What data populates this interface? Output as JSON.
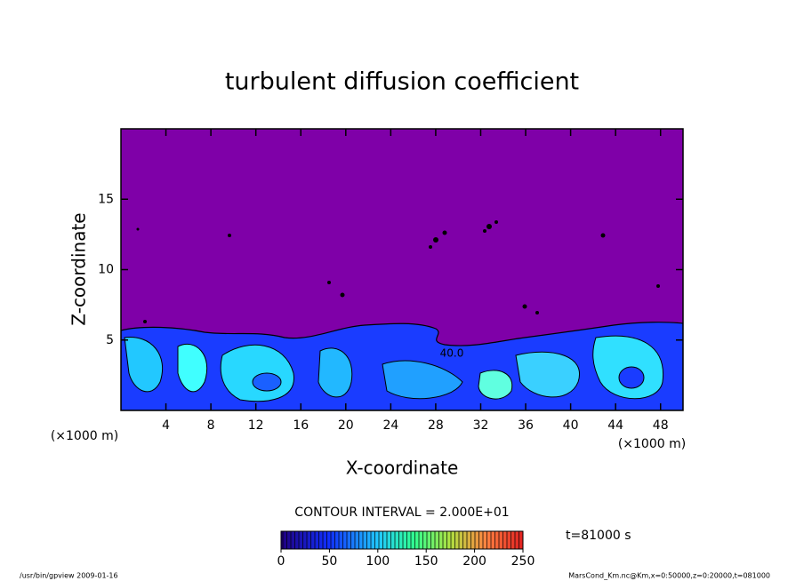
{
  "chart_data": {
    "type": "contour",
    "title": "turbulent diffusion coefficient",
    "xlabel": "X-coordinate",
    "ylabel": "Z-coordinate",
    "x_unit": "(×1000 m)",
    "y_unit": "(×1000 m)",
    "xlim": [
      0,
      50
    ],
    "xticks": [
      4,
      8,
      12,
      16,
      20,
      24,
      28,
      32,
      36,
      40,
      44,
      48
    ],
    "ylim": [
      0,
      20
    ],
    "yticks": [
      5,
      10,
      15
    ],
    "background_color": "#7f00a8",
    "contour_label": "40.0",
    "colorbar": {
      "lim": [
        0,
        250
      ],
      "ticks": [
        0,
        50,
        100,
        150,
        200,
        250
      ]
    },
    "contour_interval": "CONTOUR INTERVAL = 2.000E+01",
    "time_label": "t=81000 s",
    "footer_left": "/usr/bin/gpview  2009-01-16",
    "footer_right": "MarsCond_Km.nc@Km,x=0:50000,z=0:20000,t=081000"
  }
}
